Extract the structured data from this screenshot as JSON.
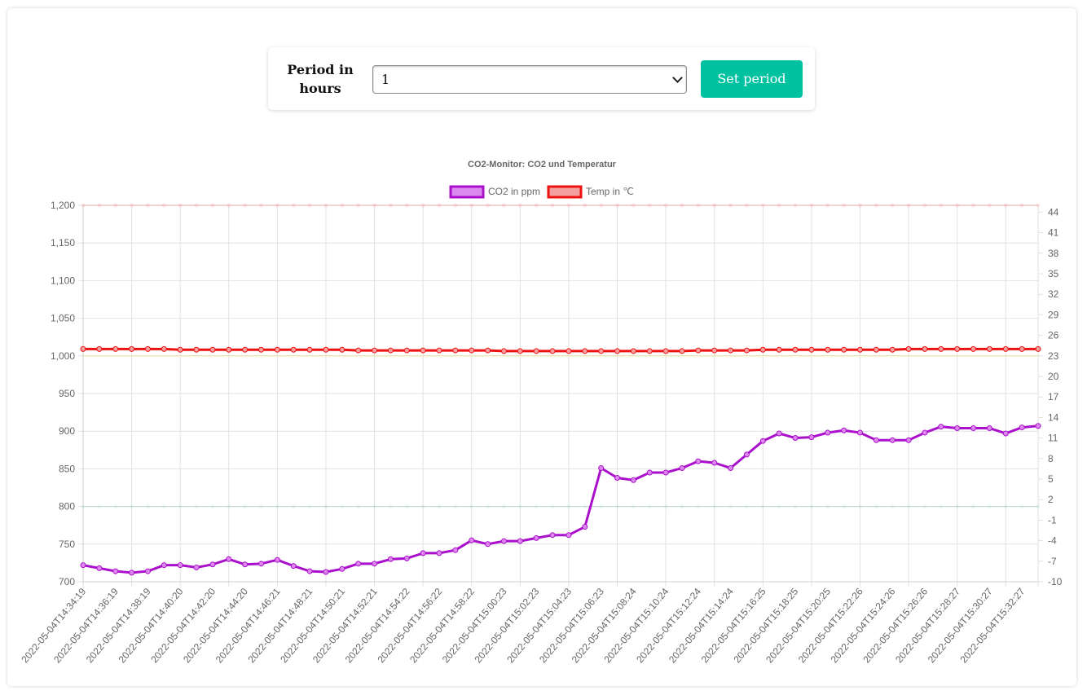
{
  "controls": {
    "period_label": "Period in hours",
    "period_value": "1",
    "set_button_label": "Set period"
  },
  "colors": {
    "accent": "#00c1a0",
    "co2_line": "#aa10cc",
    "co2_fill": "#dd88ee",
    "temp_line": "#ee1111",
    "temp_fill": "#f4a0a0"
  },
  "chart_data": {
    "type": "line",
    "title": "CO2-Monitor: CO2 und Temperatur",
    "legend_position": "top",
    "grid": true,
    "x_axis": {
      "tick_labels": [
        "2022-05-04T14:34:19",
        "2022-05-04T14:36:19",
        "2022-05-04T14:38:19",
        "2022-05-04T14:40:20",
        "2022-05-04T14:42:20",
        "2022-05-04T14:44:20",
        "2022-05-04T14:46:21",
        "2022-05-04T14:48:21",
        "2022-05-04T14:50:21",
        "2022-05-04T14:52:21",
        "2022-05-04T14:54:22",
        "2022-05-04T14:56:22",
        "2022-05-04T14:58:22",
        "2022-05-04T15:00:23",
        "2022-05-04T15:02:23",
        "2022-05-04T15:04:23",
        "2022-05-04T15:06:23",
        "2022-05-04T15:08:24",
        "2022-05-04T15:10:24",
        "2022-05-04T15:12:24",
        "2022-05-04T15:14:24",
        "2022-05-04T15:16:25",
        "2022-05-04T15:18:25",
        "2022-05-04T15:20:25",
        "2022-05-04T15:22:26",
        "2022-05-04T15:24:26",
        "2022-05-04T15:26:26",
        "2022-05-04T15:28:27",
        "2022-05-04T15:30:27",
        "2022-05-04T15:32:27"
      ]
    },
    "y_left": {
      "range": [
        700,
        1200
      ],
      "ticks": [
        700,
        750,
        800,
        850,
        900,
        950,
        1000,
        1050,
        1100,
        1150,
        1200
      ],
      "tick_labels": [
        "700",
        "750",
        "800",
        "850",
        "900",
        "950",
        "1,000",
        "1,050",
        "1,100",
        "1,150",
        "1,200"
      ]
    },
    "y_right": {
      "range": [
        -10,
        45
      ],
      "ticks": [
        -10,
        -7,
        -4,
        -1,
        2,
        5,
        8,
        11,
        14,
        17,
        20,
        23,
        26,
        29,
        32,
        35,
        38,
        41,
        44
      ],
      "tick_labels": [
        "-10",
        "-7",
        "-4",
        "-1",
        "2",
        "5",
        "8",
        "11",
        "14",
        "17",
        "20",
        "23",
        "26",
        "29",
        "32",
        "35",
        "38",
        "41",
        "44"
      ]
    },
    "point_count": 60,
    "series": [
      {
        "name": "CO2 in ppm",
        "axis": "left",
        "values": [
          722,
          718,
          714,
          712,
          714,
          722,
          722,
          719,
          723,
          730,
          723,
          724,
          729,
          721,
          714,
          713,
          717,
          724,
          724,
          730,
          731,
          738,
          738,
          742,
          755,
          750,
          754,
          754,
          758,
          762,
          762,
          773,
          851,
          838,
          835,
          845,
          845,
          851,
          860,
          858,
          851,
          869,
          887,
          897,
          891,
          892,
          898,
          901,
          898,
          888,
          888,
          888,
          898,
          906,
          904,
          904,
          904,
          897,
          905,
          907
        ]
      },
      {
        "name": "Temp in ℃",
        "axis": "right",
        "values": [
          24.0,
          24.0,
          24.0,
          24.0,
          24.0,
          24.0,
          23.9,
          23.9,
          23.9,
          23.9,
          23.9,
          23.9,
          23.9,
          23.9,
          23.9,
          23.9,
          23.9,
          23.8,
          23.8,
          23.8,
          23.8,
          23.8,
          23.8,
          23.8,
          23.8,
          23.8,
          23.7,
          23.7,
          23.7,
          23.7,
          23.7,
          23.7,
          23.7,
          23.7,
          23.7,
          23.7,
          23.7,
          23.7,
          23.8,
          23.8,
          23.8,
          23.8,
          23.9,
          23.9,
          23.9,
          23.9,
          23.9,
          23.9,
          23.9,
          23.9,
          23.9,
          24.0,
          24.0,
          24.0,
          24.0,
          24.0,
          24.0,
          24.0,
          24.0,
          24.0
        ]
      }
    ],
    "reference_bands": [
      {
        "axis": "left",
        "value": 1200,
        "color": "#f08080"
      },
      {
        "axis": "left",
        "value": 1000,
        "color": "#e8e070"
      },
      {
        "axis": "left",
        "value": 800,
        "color": "#a0d0c0"
      }
    ]
  }
}
